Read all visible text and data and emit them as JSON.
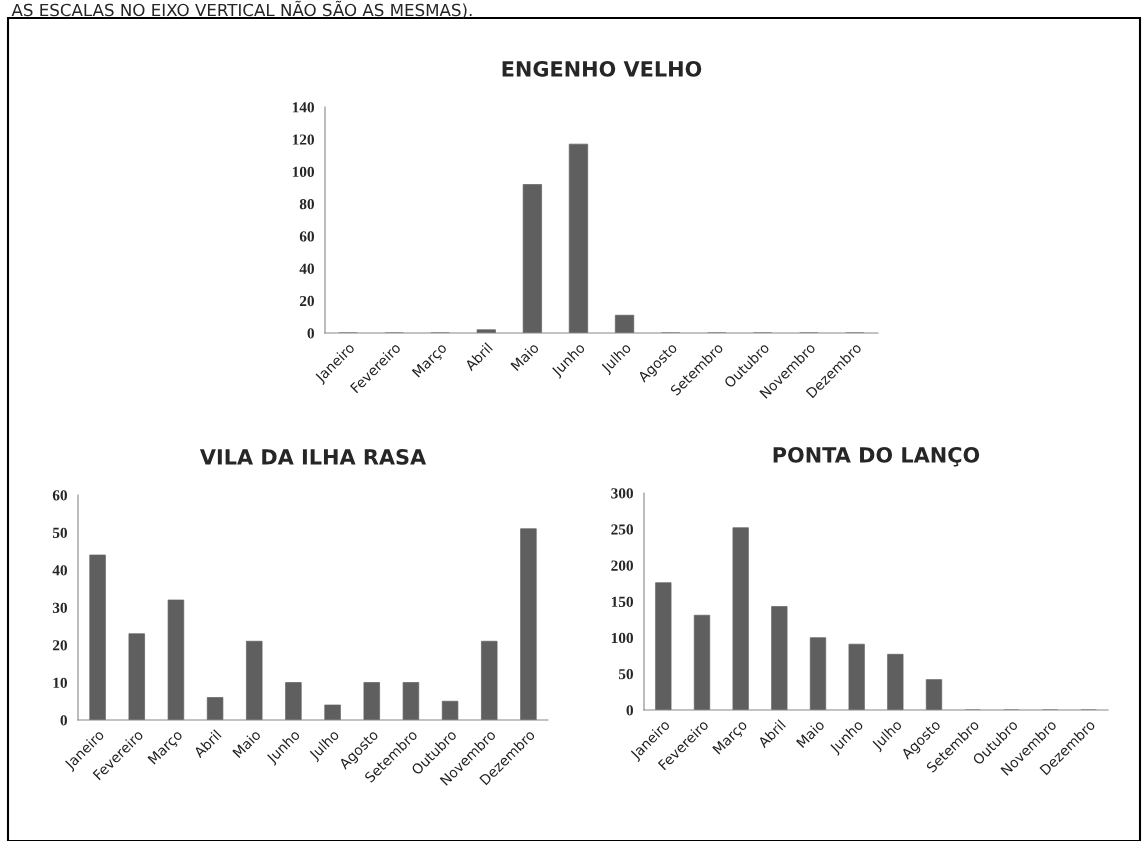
{
  "chart_data": [
    {
      "type": "bar",
      "title": "ENGENHO VELHO",
      "annotations": [
        "AS ESCALAS NO EIXO VERTICAL NÃO SÃO AS MESMAS)."
      ],
      "categories": [
        "Janeiro",
        "Fevereiro",
        "Março",
        "Abril",
        "Maio",
        "Junho",
        "Julho",
        "Agosto",
        "Setembro",
        "Outubro",
        "Novembro",
        "Dezembro"
      ],
      "values": [
        0,
        0,
        0,
        2,
        92,
        117,
        11,
        0,
        0,
        0,
        0,
        0
      ],
      "color": "#5f5f5f",
      "ylim": [
        0,
        140
      ],
      "yticks": [
        0,
        20,
        40,
        60,
        80,
        100,
        120,
        140
      ],
      "grid": false,
      "legend": false
    },
    {
      "type": "bar",
      "title": "VILA DA ILHA RASA",
      "categories": [
        "Janeiro",
        "Fevereiro",
        "Março",
        "Abril",
        "Maio",
        "Junho",
        "Julho",
        "Agosto",
        "Setembro",
        "Outubro",
        "Novembro",
        "Dezembro"
      ],
      "values": [
        44,
        23,
        32,
        6,
        21,
        10,
        4,
        10,
        10,
        5,
        21,
        51
      ],
      "color": "#5f5f5f",
      "ylim": [
        0,
        60
      ],
      "yticks": [
        0,
        10,
        20,
        30,
        40,
        50,
        60
      ],
      "grid": false,
      "legend": false
    },
    {
      "type": "bar",
      "title": "PONTA DO LANÇO",
      "categories": [
        "Janeiro",
        "Fevereiro",
        "Março",
        "Abril",
        "Maio",
        "Junho",
        "Julho",
        "Agosto",
        "Setembro",
        "Outubro",
        "Novembro",
        "Dezembro"
      ],
      "values": [
        176,
        131,
        252,
        143,
        100,
        91,
        77,
        42,
        0,
        0,
        0,
        0
      ],
      "color": "#5f5f5f",
      "ylim": [
        0,
        300
      ],
      "yticks": [
        0,
        50,
        100,
        150,
        200,
        250,
        300
      ],
      "grid": false,
      "legend": false
    }
  ]
}
